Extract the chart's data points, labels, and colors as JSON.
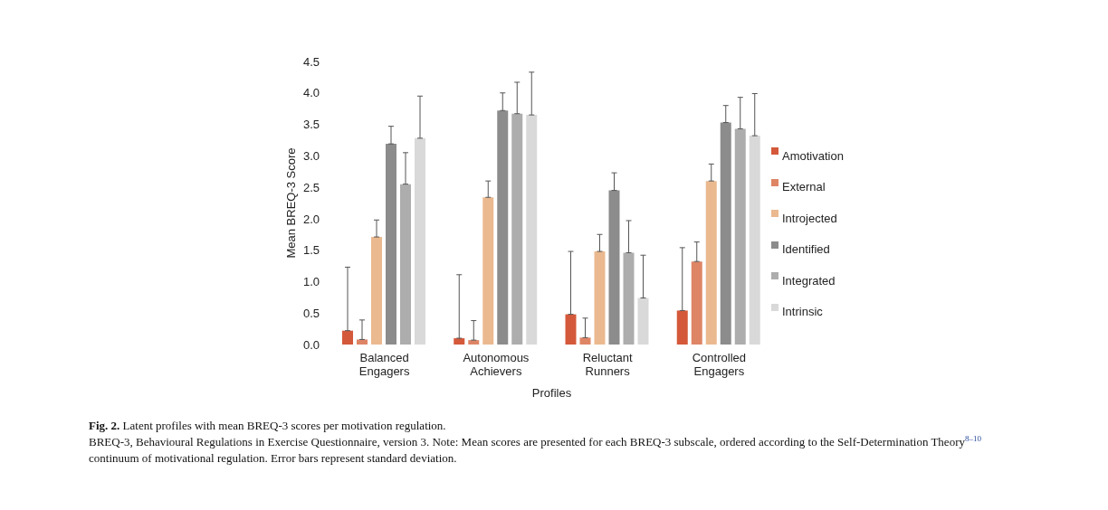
{
  "chart_data": {
    "type": "bar",
    "title": "Latent profiles with mean BREQ-3 scores per motivation regulation.",
    "xlabel": "Profiles",
    "ylabel": "Mean BREQ-3 Score",
    "annotations": [
      "Fig. 2.",
      "BREQ-3, Behavioural Regulations in Exercise Questionnaire, version 3. Note: Mean scores are presented for each BREQ-3 subscale, ordered according to the Self-Determination Theory$^{8–10}$ continuum of motivational regulation. Error bars represent standard deviation."
    ],
    "categories": [
      "Balanced Engagers",
      "Autonomous Achievers",
      "Reluctant Runners",
      "Controlled Engagers"
    ],
    "series": [
      {
        "name": "Amotivation",
        "color": "#d4593a",
        "values": [
          0.22,
          0.1,
          0.48,
          0.54
        ],
        "errors": [
          [
            0.22,
            1.23
          ],
          [
            0.1,
            1.11
          ],
          [
            0.48,
            1.48
          ],
          [
            0.54,
            1.54
          ]
        ]
      },
      {
        "name": "External",
        "color": "#de8566",
        "values": [
          0.08,
          0.07,
          0.11,
          1.32
        ],
        "errors": [
          [
            0.08,
            0.39
          ],
          [
            0.07,
            0.38
          ],
          [
            0.11,
            0.42
          ],
          [
            1.32,
            1.63
          ]
        ]
      },
      {
        "name": "Introjected",
        "color": "#ebb98f",
        "values": [
          1.71,
          2.34,
          1.48,
          2.6
        ],
        "errors": [
          [
            1.71,
            1.98
          ],
          [
            2.34,
            2.6
          ],
          [
            1.48,
            1.75
          ],
          [
            2.6,
            2.87
          ]
        ]
      },
      {
        "name": "Identified",
        "color": "#8c8c8c",
        "values": [
          3.19,
          3.72,
          2.45,
          3.53
        ],
        "errors": [
          [
            3.19,
            3.47
          ],
          [
            3.72,
            4.0
          ],
          [
            2.45,
            2.73
          ],
          [
            3.53,
            3.8
          ]
        ]
      },
      {
        "name": "Integrated",
        "color": "#adadad",
        "values": [
          2.55,
          3.67,
          1.46,
          3.43
        ],
        "errors": [
          [
            2.55,
            3.05
          ],
          [
            3.67,
            4.17
          ],
          [
            1.46,
            1.97
          ],
          [
            3.43,
            3.93
          ]
        ]
      },
      {
        "name": "Intrinsic",
        "color": "#d9d9d9",
        "values": [
          3.28,
          3.65,
          0.74,
          3.32
        ],
        "errors": [
          [
            3.28,
            3.95
          ],
          [
            3.65,
            4.33
          ],
          [
            0.74,
            1.42
          ],
          [
            3.32,
            3.99
          ]
        ]
      }
    ],
    "ylim": [
      0,
      4.5
    ],
    "yticks": [
      {
        "value": 0,
        "label": "0.0"
      },
      0.5,
      {
        "value": 1,
        "label": "1.0"
      },
      1.5,
      {
        "value": 2,
        "label": "2.0"
      },
      2.5,
      {
        "value": 3,
        "label": "3.0"
      },
      3.5,
      {
        "value": 4,
        "label": "4.0"
      },
      4.5
    ],
    "legend": "right"
  }
}
